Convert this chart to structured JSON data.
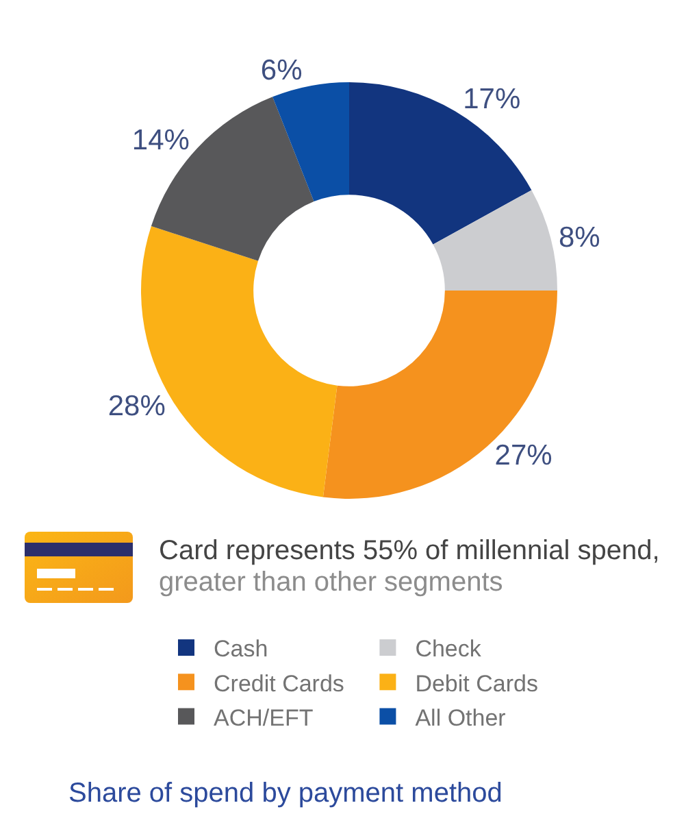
{
  "chart_data": {
    "type": "donut",
    "title": "Share of spend by payment method",
    "categories": [
      "Cash",
      "Check",
      "Credit Cards",
      "Debit Cards",
      "ACH/EFT",
      "All Other"
    ],
    "values": [
      17,
      8,
      27,
      28,
      14,
      6
    ],
    "colors": [
      "#12357f",
      "#cccdd0",
      "#f5921e",
      "#fbb116",
      "#58585a",
      "#0b4fa6"
    ],
    "value_labels": [
      "17%",
      "8%",
      "27%",
      "28%",
      "14%",
      "6%"
    ],
    "legend": "bottom",
    "annotations": [
      "Card represents 55% of millennial spend,",
      "greater than other segments"
    ]
  }
}
